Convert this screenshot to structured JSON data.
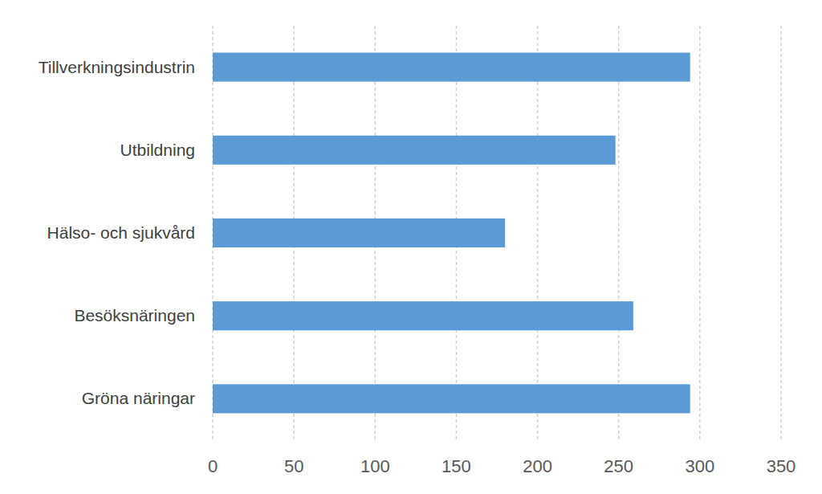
{
  "chart_data": {
    "type": "bar",
    "orientation": "horizontal",
    "categories": [
      "Tillverkningsindustrin",
      "Utbildning",
      "Hälso- och sjukvård",
      "Besöksnäringen",
      "Gröna näringar"
    ],
    "values": [
      294,
      248,
      180,
      259,
      294
    ],
    "color": "#5b9bd5",
    "xlim": [
      0,
      350
    ],
    "xticks": [
      0,
      50,
      100,
      150,
      200,
      250,
      300,
      350
    ],
    "grid": true
  }
}
